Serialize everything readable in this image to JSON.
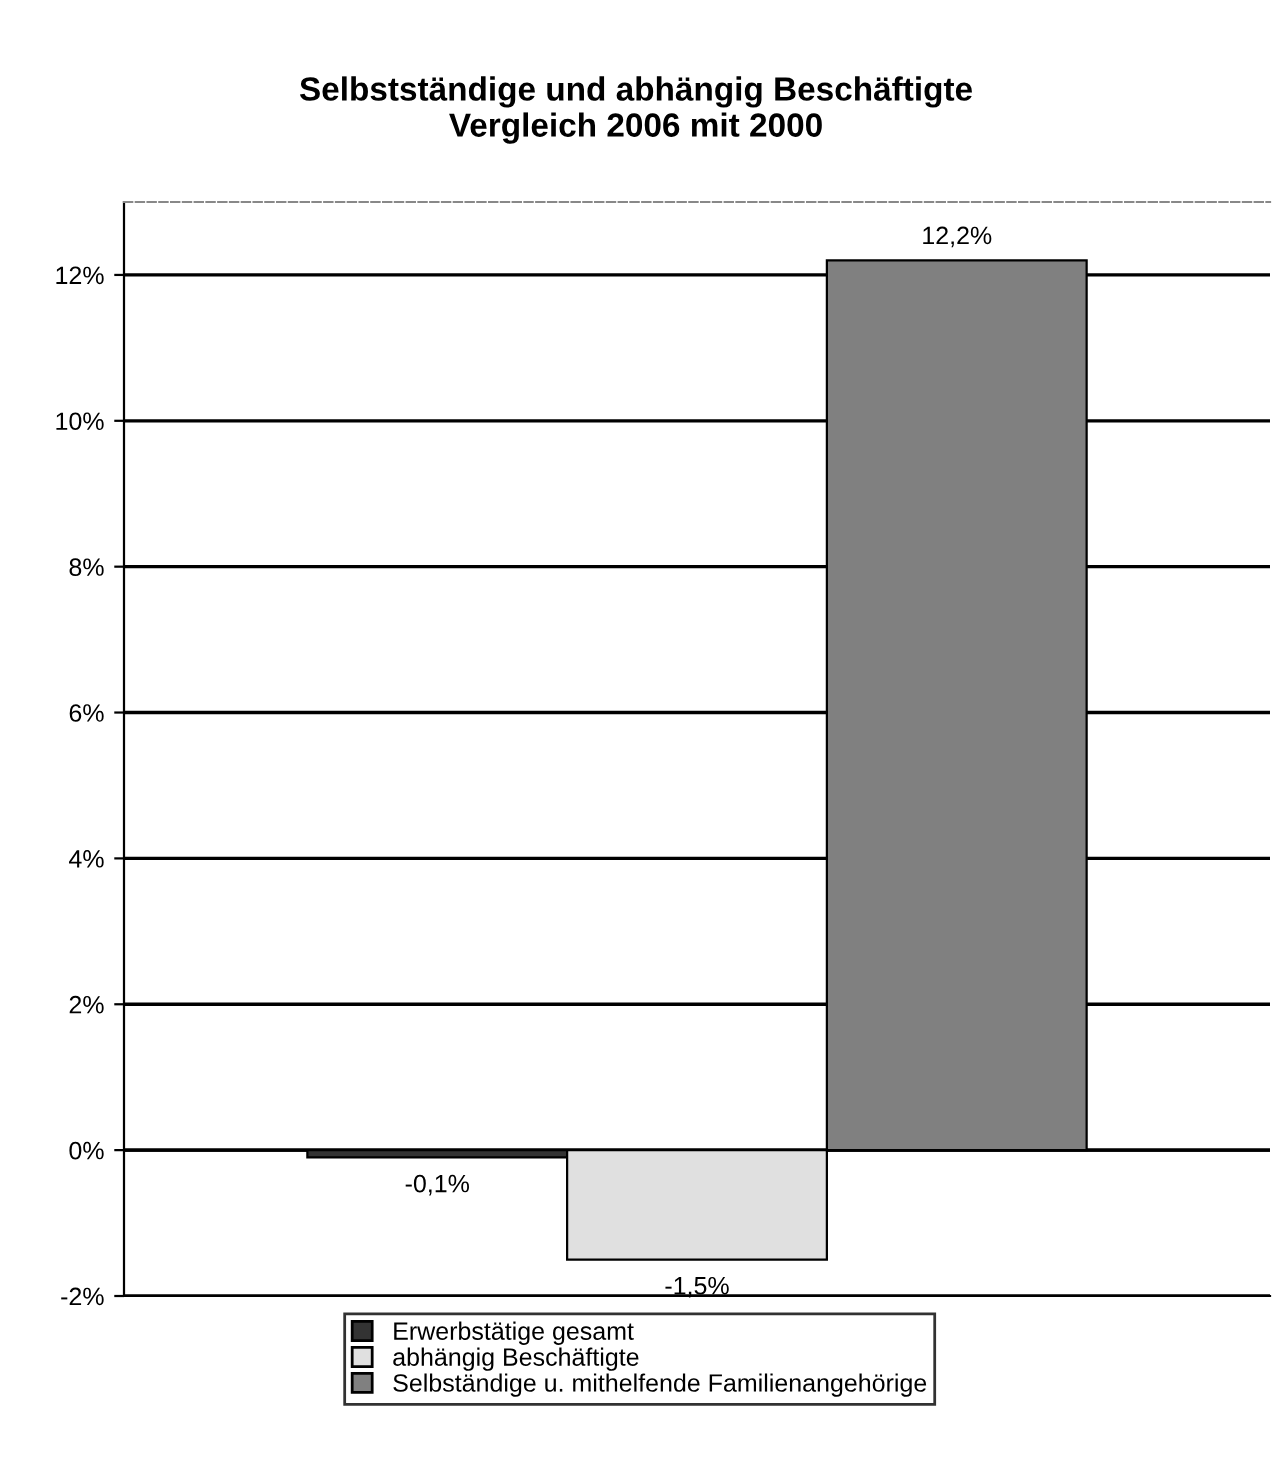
{
  "chart_data": {
    "type": "bar",
    "title": "Selbstständige und abhängig Beschäftigte\nVergleich 2006 mit 2000",
    "categories": [
      null
    ],
    "series": [
      {
        "name": "Erwerbstätige gesamt",
        "color": "#333333",
        "values": [
          -0.1
        ],
        "value_labels": [
          "-0,1%"
        ]
      },
      {
        "name": "abhängig Beschäftigte",
        "color": "#e0e0e0",
        "values": [
          -1.5
        ],
        "value_labels": [
          "-1,5%"
        ]
      },
      {
        "name": "Selbständige u. mithelfende Familienangehörige",
        "color": "#808080",
        "values": [
          12.2
        ],
        "value_labels": [
          "12,2%"
        ]
      }
    ],
    "ylim": [
      -2,
      13
    ],
    "yticks": [
      {
        "value": -2,
        "label": "-2%"
      },
      {
        "value": 0,
        "label": "0%"
      },
      {
        "value": 2,
        "label": "2%"
      },
      {
        "value": 4,
        "label": "4%"
      },
      {
        "value": 6,
        "label": "6%"
      },
      {
        "value": 8,
        "label": "8%"
      },
      {
        "value": 10,
        "label": "10%"
      },
      {
        "value": 12,
        "label": "12%"
      }
    ],
    "grid": "y",
    "legend": "bottom"
  }
}
